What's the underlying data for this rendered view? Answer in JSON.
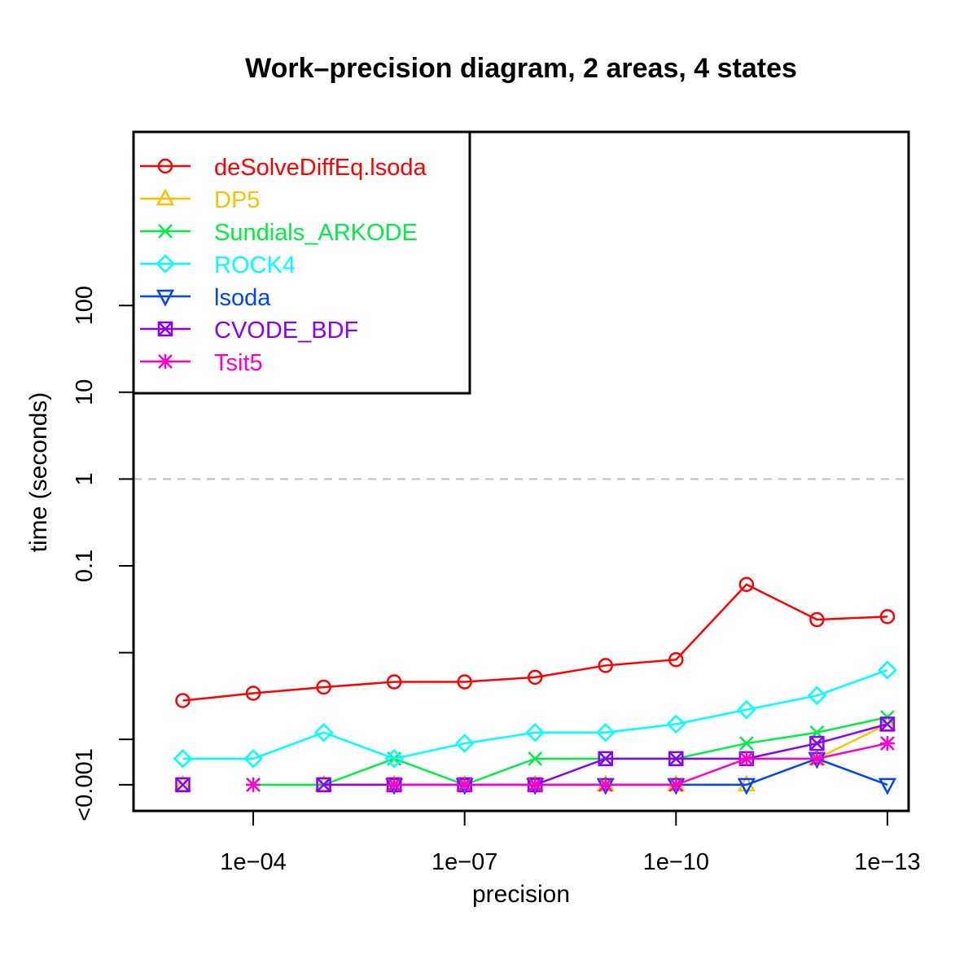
{
  "chart_data": {
    "type": "line",
    "title": "Work–precision diagram, 2 areas, 4 states",
    "xlabel": "precision",
    "ylabel": "time (seconds)",
    "x_scale": "log10, decreasing to the right",
    "y_scale": "log10",
    "x_ticks": [
      {
        "value": 0.0001,
        "label": "1e−04"
      },
      {
        "value": 1e-07,
        "label": "1e−07"
      },
      {
        "value": 1e-10,
        "label": "1e−10"
      },
      {
        "value": 1e-13,
        "label": "1e−13"
      }
    ],
    "y_ticks": [
      {
        "value": 0.0003,
        "label": "<0.001"
      },
      {
        "value": 0.001,
        "label": ""
      },
      {
        "value": 0.01,
        "label": ""
      },
      {
        "value": 0.1,
        "label": "0.1"
      },
      {
        "value": 1,
        "label": "1"
      },
      {
        "value": 10,
        "label": "10"
      },
      {
        "value": 100,
        "label": "100"
      }
    ],
    "y_label_note": "values below 0.001 s are drawn at the \"<0.001\" level",
    "reference_line": {
      "y": 1,
      "style": "dashed",
      "color": "#bebebe"
    },
    "xlim": [
      0.005,
      5e-14
    ],
    "ylim": [
      0.00015,
      10000
    ],
    "grid": false,
    "legend_position": "top-left",
    "x": [
      0.001,
      0.0001,
      1e-05,
      1e-06,
      1e-07,
      1e-08,
      1e-09,
      1e-10,
      1e-11,
      1e-12,
      1e-13
    ],
    "series": [
      {
        "name": "deSolveDiffEq.lsoda",
        "color": "#ff0000",
        "marker": "circle",
        "values": [
          0.0028,
          0.0034,
          0.004,
          0.0046,
          0.0046,
          0.0052,
          0.0071,
          0.0083,
          0.061,
          0.024,
          0.026
        ]
      },
      {
        "name": "DP5",
        "color": "#ffc000",
        "marker": "triangle-up",
        "values": [
          0.0003,
          null,
          0.0003,
          0.0003,
          0.0003,
          0.0003,
          0.0003,
          0.0003,
          0.0003,
          0.0006,
          0.0015
        ]
      },
      {
        "name": "Sundials_ARKODE",
        "color": "#00ee44",
        "marker": "cross",
        "values": [
          null,
          0.0003,
          0.0003,
          0.0006,
          0.0003,
          0.0006,
          0.0006,
          0.0006,
          0.0009,
          0.0012,
          0.0018
        ]
      },
      {
        "name": "ROCK4",
        "color": "#00ffff",
        "marker": "diamond",
        "values": [
          0.0006,
          0.0006,
          0.0012,
          0.0006,
          0.0009,
          0.0012,
          0.0012,
          0.0015,
          0.0022,
          0.0032,
          0.0063
        ]
      },
      {
        "name": "lsoda",
        "color": "#0044ff",
        "marker": "triangle-down",
        "values": [
          null,
          null,
          null,
          0.0003,
          0.0003,
          0.0003,
          0.0003,
          0.0003,
          0.0003,
          0.0006,
          0.0003
        ]
      },
      {
        "name": "CVODE_BDF",
        "color": "#8800ff",
        "marker": "square-x",
        "values": [
          0.0003,
          null,
          0.0003,
          0.0003,
          0.0003,
          0.0003,
          0.0006,
          0.0006,
          0.0006,
          0.0009,
          0.0015
        ]
      },
      {
        "name": "Tsit5",
        "color": "#ff00cc",
        "marker": "asterisk",
        "values": [
          null,
          0.0003,
          null,
          0.0003,
          0.0003,
          0.0003,
          0.0003,
          0.0003,
          0.0006,
          0.0006,
          0.0009
        ]
      }
    ]
  }
}
